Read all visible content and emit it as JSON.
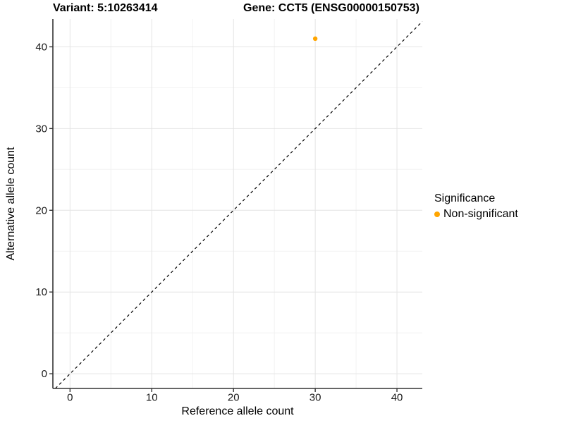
{
  "chart_data": {
    "type": "scatter",
    "titles": {
      "left": "Variant: 5:10263414",
      "right": "Gene: CCT5 (ENSG00000150753)"
    },
    "xlabel": "Reference allele count",
    "ylabel": "Alternative allele count",
    "x_ticks": [
      0,
      10,
      20,
      30,
      40
    ],
    "y_ticks": [
      0,
      10,
      20,
      30,
      40
    ],
    "x_minor_ticks": [
      5,
      15,
      25,
      35
    ],
    "y_minor_ticks": [
      5,
      15,
      25,
      35
    ],
    "xlim": [
      -2.1,
      43.1
    ],
    "ylim": [
      -1.8,
      43.4
    ],
    "grid": "major+minor",
    "legend_position": "right",
    "points": [
      {
        "x": 30,
        "y": 41,
        "series": "Non-significant"
      }
    ],
    "identity_line": {
      "slope": 1,
      "intercept": 0,
      "style": "dashed",
      "color": "#000000"
    },
    "legend": {
      "title": "Significance",
      "entries": [
        {
          "label": "Non-significant",
          "color": "#FFA500"
        }
      ]
    },
    "colors": {
      "point": "#FFA500",
      "grid_major": "#e4e4e4",
      "grid_minor": "#f2f2f2",
      "axis": "#333333",
      "tick_text": "#1a1a1a",
      "background": "#ffffff"
    }
  }
}
